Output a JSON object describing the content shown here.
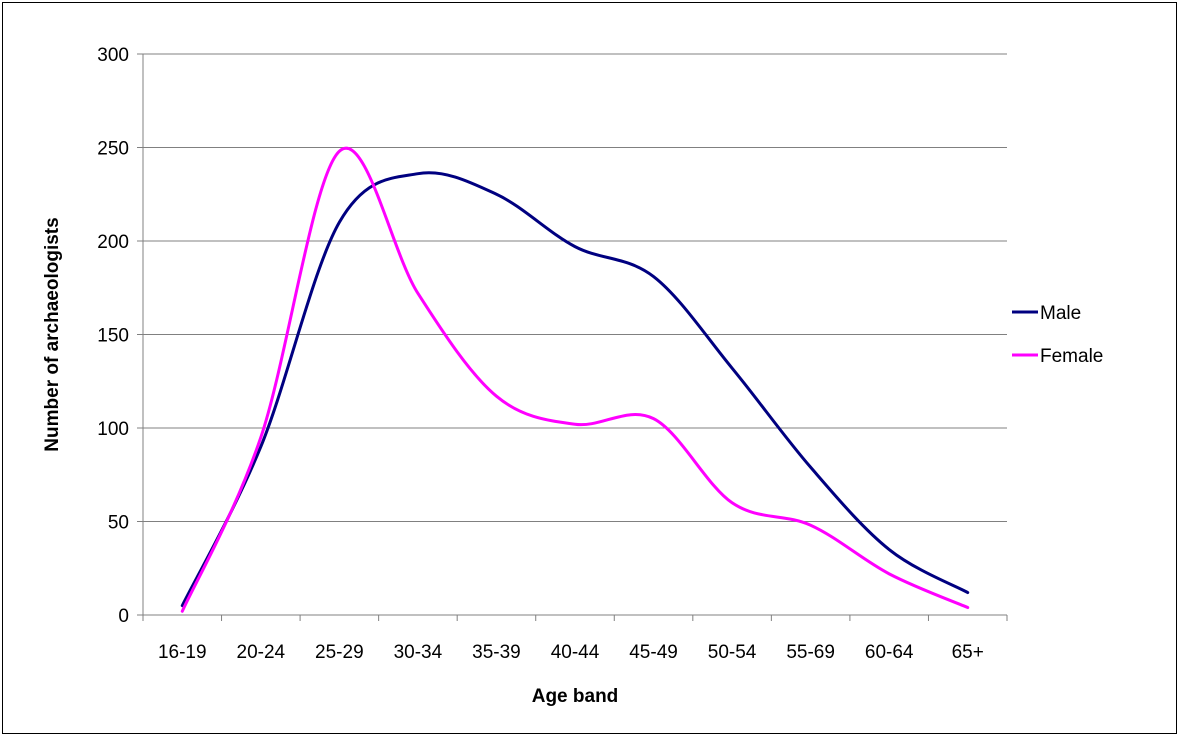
{
  "chart_data": {
    "type": "line",
    "title": "",
    "xlabel": "Age band",
    "ylabel": "Number of archaeologists",
    "categories": [
      "16-19",
      "20-24",
      "25-29",
      "30-34",
      "35-39",
      "40-44",
      "45-49",
      "50-54",
      "55-69",
      "60-64",
      "65+"
    ],
    "ylim": [
      0,
      300
    ],
    "yticks": [
      0,
      50,
      100,
      150,
      200,
      250,
      300
    ],
    "grid": true,
    "legend_position": "right",
    "series": [
      {
        "name": "Male",
        "color": "#000080",
        "values": [
          5,
          90,
          210,
          236,
          225,
          197,
          181,
          132,
          79,
          35,
          12
        ]
      },
      {
        "name": "Female",
        "color": "#FF00FF",
        "values": [
          2,
          95,
          248,
          172,
          117,
          102,
          105,
          60,
          48,
          22,
          4
        ]
      }
    ]
  }
}
